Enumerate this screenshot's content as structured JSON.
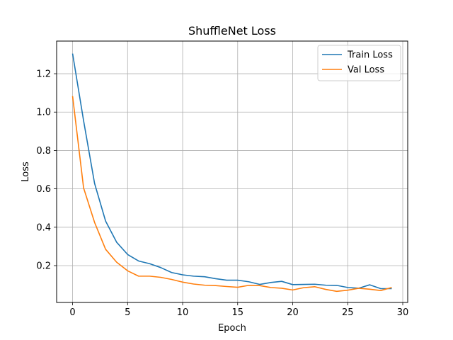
{
  "chart_data": {
    "type": "line",
    "title": "ShuffleNet Loss",
    "xlabel": "Epoch",
    "ylabel": "Loss",
    "xlim": [
      -1.45,
      30.45
    ],
    "ylim": [
      0.008,
      1.37
    ],
    "xticks": [
      0,
      5,
      10,
      15,
      20,
      25,
      30
    ],
    "yticks": [
      0.2,
      0.4,
      0.6,
      0.8,
      1.0,
      1.2
    ],
    "ytick_labels": [
      "0.2",
      "0.4",
      "0.6",
      "0.8",
      "1.0",
      "1.2"
    ],
    "grid": true,
    "legend_position": "upper right",
    "x": [
      0,
      1,
      2,
      3,
      4,
      5,
      6,
      7,
      8,
      9,
      10,
      11,
      12,
      13,
      14,
      15,
      16,
      17,
      18,
      19,
      20,
      21,
      22,
      23,
      24,
      25,
      26,
      27,
      28,
      29
    ],
    "series": [
      {
        "name": "Train Loss",
        "color": "#1f77b4",
        "values": [
          1.305,
          0.955,
          0.628,
          0.432,
          0.322,
          0.258,
          0.224,
          0.21,
          0.19,
          0.164,
          0.152,
          0.145,
          0.142,
          0.132,
          0.124,
          0.124,
          0.116,
          0.102,
          0.112,
          0.118,
          0.101,
          0.102,
          0.103,
          0.098,
          0.097,
          0.086,
          0.082,
          0.1,
          0.08,
          0.08
        ]
      },
      {
        "name": "Val Loss",
        "color": "#ff7f0e",
        "values": [
          1.083,
          0.605,
          0.425,
          0.285,
          0.218,
          0.173,
          0.145,
          0.145,
          0.139,
          0.128,
          0.114,
          0.104,
          0.098,
          0.096,
          0.091,
          0.087,
          0.097,
          0.096,
          0.086,
          0.082,
          0.073,
          0.085,
          0.09,
          0.076,
          0.066,
          0.072,
          0.082,
          0.077,
          0.07,
          0.086
        ]
      }
    ]
  }
}
